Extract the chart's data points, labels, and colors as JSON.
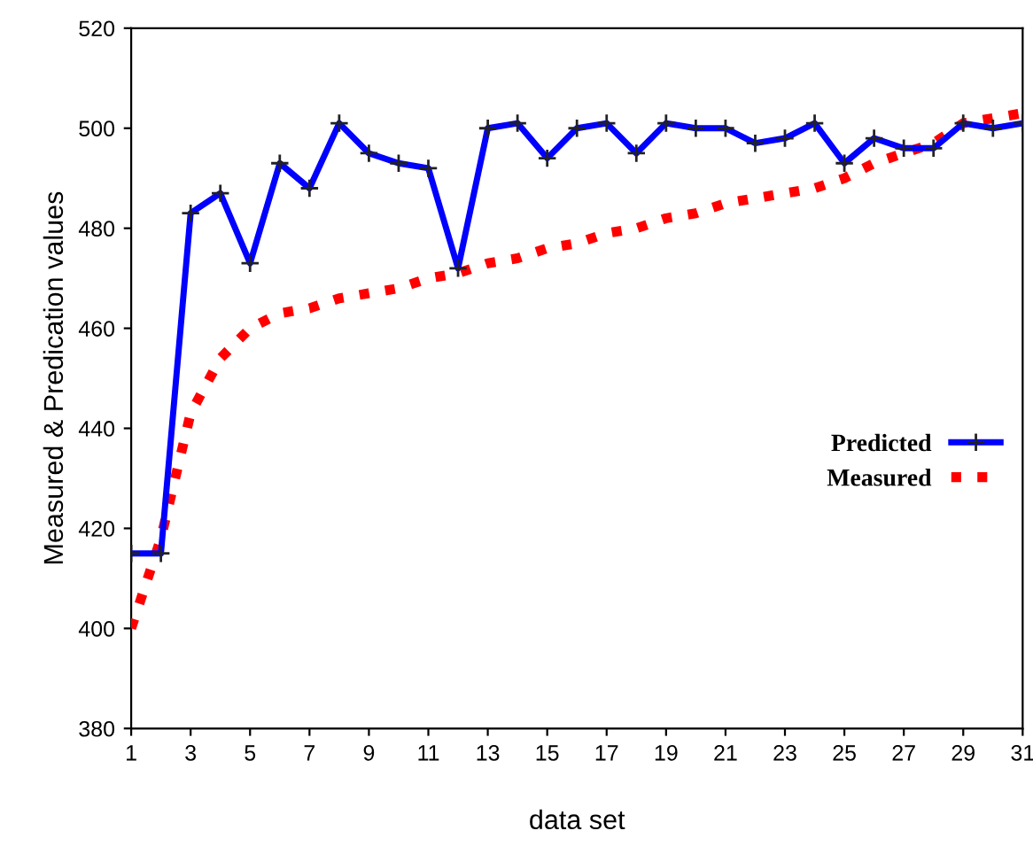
{
  "chart_data": {
    "type": "line",
    "xlabel": "data set",
    "ylabel": "Measured & Predication values",
    "x": [
      1,
      2,
      3,
      4,
      5,
      6,
      7,
      8,
      9,
      10,
      11,
      12,
      13,
      14,
      15,
      16,
      17,
      18,
      19,
      20,
      21,
      22,
      23,
      24,
      25,
      26,
      27,
      28,
      29,
      30,
      31
    ],
    "series": [
      {
        "name": "Predicted",
        "color": "#0000ff",
        "marker": "cross",
        "line_style": "solid",
        "values": [
          415,
          415,
          483,
          487,
          473,
          493,
          488,
          501,
          495,
          493,
          492,
          472,
          500,
          501,
          494,
          500,
          501,
          495,
          501,
          500,
          500,
          497,
          498,
          501,
          493,
          498,
          496,
          496,
          501,
          500,
          501
        ]
      },
      {
        "name": "Measured",
        "color": "#ff0000",
        "marker": "none",
        "line_style": "dotted",
        "values": [
          400,
          418,
          443,
          454,
          460,
          463,
          464,
          466,
          467,
          468,
          470,
          471,
          473,
          474,
          476,
          477,
          479,
          480,
          482,
          483,
          485,
          486,
          487,
          488,
          490,
          493,
          495,
          497,
          501,
          502,
          503
        ]
      }
    ],
    "xlim": [
      1,
      31
    ],
    "xticks": [
      1,
      3,
      5,
      7,
      9,
      11,
      13,
      15,
      17,
      19,
      21,
      23,
      25,
      27,
      29,
      31
    ],
    "ylim": [
      380,
      520
    ],
    "yticks": [
      380,
      400,
      420,
      440,
      460,
      480,
      500,
      520
    ],
    "grid": false,
    "legend": "center right"
  }
}
